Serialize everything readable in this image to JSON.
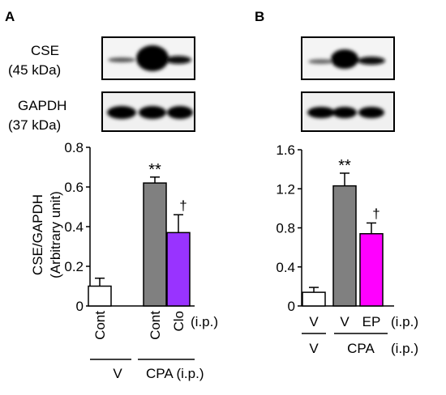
{
  "panels": [
    {
      "letter": "A",
      "blots": [
        {
          "label_line1": "CSE",
          "label_line2": "(45 kDa)"
        },
        {
          "label_line1": "GAPDH",
          "label_line2": "(37 kDa)"
        }
      ],
      "ylabel_line1": "CSE/GAPDH",
      "ylabel_line2": "(Arbitrary unit)",
      "route_label": "(i.p.)",
      "group_labels": [
        {
          "text": "V"
        },
        {
          "text": "CPA (i.p.)"
        }
      ]
    },
    {
      "letter": "B",
      "route_label_treat": "(i.p.)",
      "route_label_group": "(i.p.)",
      "top_labels": [
        "V",
        "V",
        "EP"
      ],
      "bottom_labels": [
        "V",
        "CPA"
      ]
    }
  ],
  "chart_data": [
    {
      "type": "bar",
      "categories": [
        "Cont",
        "Cont",
        "Clo"
      ],
      "values": [
        0.1,
        0.62,
        0.37
      ],
      "errors": [
        0.04,
        0.03,
        0.09
      ],
      "colors": [
        "#ffffff",
        "#808080",
        "#9933ff"
      ],
      "annotations": [
        "",
        "**",
        "†"
      ],
      "yticks": [
        "0",
        "0.2",
        "0.4",
        "0.6",
        "0.8"
      ],
      "ylim": [
        0,
        0.8
      ]
    },
    {
      "type": "bar",
      "categories": [
        "V",
        "V",
        "EP"
      ],
      "values": [
        0.14,
        1.23,
        0.74
      ],
      "errors": [
        0.05,
        0.13,
        0.11
      ],
      "colors": [
        "#ffffff",
        "#808080",
        "#ff00ff"
      ],
      "annotations": [
        "",
        "**",
        "†"
      ],
      "yticks": [
        "0",
        "0.4",
        "0.8",
        "1.2",
        "1.6"
      ],
      "ylim": [
        0,
        1.6
      ]
    }
  ]
}
